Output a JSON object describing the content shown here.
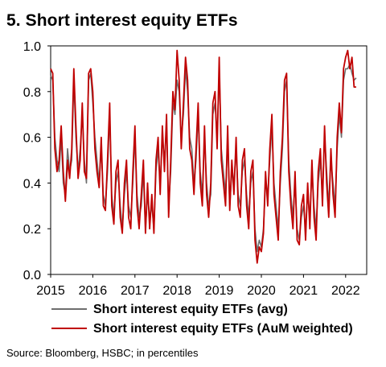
{
  "title": "5. Short interest equity ETFs",
  "source": "Source: Bloomberg, HSBC; in percentiles",
  "chart_data": {
    "type": "line",
    "ylim": [
      0.0,
      1.0
    ],
    "y_ticks": [
      "0.0",
      "0.2",
      "0.4",
      "0.6",
      "0.8",
      "1.0"
    ],
    "x_ticks": [
      "2015",
      "2016",
      "2017",
      "2018",
      "2019",
      "2020",
      "2021",
      "2022"
    ],
    "xlim": [
      2015.0,
      2022.5
    ],
    "legend_position": "bottom",
    "grid": false,
    "series": [
      {
        "name": "Short interest equity ETFs (avg)",
        "color": "#6e6e6e",
        "x": [
          2015.0,
          2015.05,
          2015.1,
          2015.15,
          2015.2,
          2015.25,
          2015.3,
          2015.35,
          2015.4,
          2015.45,
          2015.5,
          2015.55,
          2015.6,
          2015.65,
          2015.7,
          2015.75,
          2015.8,
          2015.85,
          2015.9,
          2015.95,
          2016.0,
          2016.05,
          2016.1,
          2016.15,
          2016.2,
          2016.25,
          2016.3,
          2016.35,
          2016.4,
          2016.45,
          2016.5,
          2016.55,
          2016.6,
          2016.65,
          2016.7,
          2016.75,
          2016.8,
          2016.85,
          2016.9,
          2016.95,
          2017.0,
          2017.05,
          2017.1,
          2017.15,
          2017.2,
          2017.25,
          2017.3,
          2017.35,
          2017.4,
          2017.45,
          2017.5,
          2017.55,
          2017.6,
          2017.65,
          2017.7,
          2017.75,
          2017.8,
          2017.85,
          2017.9,
          2017.95,
          2018.0,
          2018.05,
          2018.1,
          2018.15,
          2018.2,
          2018.25,
          2018.3,
          2018.35,
          2018.4,
          2018.45,
          2018.5,
          2018.55,
          2018.6,
          2018.65,
          2018.7,
          2018.75,
          2018.8,
          2018.85,
          2018.9,
          2018.95,
          2019.0,
          2019.05,
          2019.1,
          2019.15,
          2019.2,
          2019.25,
          2019.3,
          2019.35,
          2019.4,
          2019.45,
          2019.5,
          2019.55,
          2019.6,
          2019.65,
          2019.7,
          2019.75,
          2019.8,
          2019.85,
          2019.9,
          2019.95,
          2020.0,
          2020.05,
          2020.1,
          2020.15,
          2020.2,
          2020.25,
          2020.3,
          2020.35,
          2020.4,
          2020.45,
          2020.5,
          2020.55,
          2020.6,
          2020.65,
          2020.7,
          2020.75,
          2020.8,
          2020.85,
          2020.9,
          2020.95,
          2021.0,
          2021.05,
          2021.1,
          2021.15,
          2021.2,
          2021.25,
          2021.3,
          2021.35,
          2021.4,
          2021.45,
          2021.5,
          2021.55,
          2021.6,
          2021.65,
          2021.7,
          2021.75,
          2021.8,
          2021.85,
          2021.9,
          2021.95,
          2022.0,
          2022.05,
          2022.1,
          2022.15,
          2022.2,
          2022.25
        ],
        "values": [
          0.87,
          0.85,
          0.6,
          0.5,
          0.45,
          0.6,
          0.4,
          0.35,
          0.55,
          0.45,
          0.5,
          0.85,
          0.6,
          0.45,
          0.55,
          0.7,
          0.5,
          0.4,
          0.85,
          0.88,
          0.75,
          0.6,
          0.5,
          0.4,
          0.55,
          0.35,
          0.3,
          0.45,
          0.7,
          0.35,
          0.25,
          0.4,
          0.45,
          0.3,
          0.2,
          0.35,
          0.45,
          0.3,
          0.25,
          0.4,
          0.6,
          0.35,
          0.25,
          0.3,
          0.45,
          0.2,
          0.35,
          0.25,
          0.3,
          0.2,
          0.45,
          0.55,
          0.4,
          0.6,
          0.5,
          0.65,
          0.3,
          0.45,
          0.75,
          0.7,
          0.85,
          0.8,
          0.6,
          0.7,
          0.9,
          0.8,
          0.6,
          0.55,
          0.4,
          0.5,
          0.7,
          0.45,
          0.35,
          0.6,
          0.4,
          0.3,
          0.35,
          0.7,
          0.75,
          0.6,
          0.9,
          0.55,
          0.45,
          0.35,
          0.6,
          0.3,
          0.45,
          0.4,
          0.55,
          0.35,
          0.3,
          0.45,
          0.5,
          0.35,
          0.25,
          0.4,
          0.45,
          0.2,
          0.1,
          0.15,
          0.12,
          0.2,
          0.4,
          0.35,
          0.5,
          0.65,
          0.4,
          0.3,
          0.2,
          0.4,
          0.55,
          0.8,
          0.85,
          0.5,
          0.35,
          0.25,
          0.4,
          0.2,
          0.15,
          0.25,
          0.3,
          0.2,
          0.35,
          0.25,
          0.45,
          0.3,
          0.2,
          0.4,
          0.5,
          0.35,
          0.6,
          0.45,
          0.3,
          0.5,
          0.4,
          0.3,
          0.55,
          0.7,
          0.6,
          0.85,
          0.9,
          0.9,
          0.92,
          0.88,
          0.85,
          0.86
        ],
        "marks": "line"
      },
      {
        "name": "Short interest equity ETFs (AuM weighted)",
        "color": "#c00000",
        "x": [
          2015.0,
          2015.05,
          2015.1,
          2015.15,
          2015.2,
          2015.25,
          2015.3,
          2015.35,
          2015.4,
          2015.45,
          2015.5,
          2015.55,
          2015.6,
          2015.65,
          2015.7,
          2015.75,
          2015.8,
          2015.85,
          2015.9,
          2015.95,
          2016.0,
          2016.05,
          2016.1,
          2016.15,
          2016.2,
          2016.25,
          2016.3,
          2016.35,
          2016.4,
          2016.45,
          2016.5,
          2016.55,
          2016.6,
          2016.65,
          2016.7,
          2016.75,
          2016.8,
          2016.85,
          2016.9,
          2016.95,
          2017.0,
          2017.05,
          2017.1,
          2017.15,
          2017.2,
          2017.25,
          2017.3,
          2017.35,
          2017.4,
          2017.45,
          2017.5,
          2017.55,
          2017.6,
          2017.65,
          2017.7,
          2017.75,
          2017.8,
          2017.85,
          2017.9,
          2017.95,
          2018.0,
          2018.05,
          2018.1,
          2018.15,
          2018.2,
          2018.25,
          2018.3,
          2018.35,
          2018.4,
          2018.45,
          2018.5,
          2018.55,
          2018.6,
          2018.65,
          2018.7,
          2018.75,
          2018.8,
          2018.85,
          2018.9,
          2018.95,
          2019.0,
          2019.05,
          2019.1,
          2019.15,
          2019.2,
          2019.25,
          2019.3,
          2019.35,
          2019.4,
          2019.45,
          2019.5,
          2019.55,
          2019.6,
          2019.65,
          2019.7,
          2019.75,
          2019.8,
          2019.85,
          2019.9,
          2019.95,
          2020.0,
          2020.05,
          2020.1,
          2020.15,
          2020.2,
          2020.25,
          2020.3,
          2020.35,
          2020.4,
          2020.45,
          2020.5,
          2020.55,
          2020.6,
          2020.65,
          2020.7,
          2020.75,
          2020.8,
          2020.85,
          2020.9,
          2020.95,
          2021.0,
          2021.05,
          2021.1,
          2021.15,
          2021.2,
          2021.25,
          2021.3,
          2021.35,
          2021.4,
          2021.45,
          2021.5,
          2021.55,
          2021.6,
          2021.65,
          2021.7,
          2021.75,
          2021.8,
          2021.85,
          2021.9,
          2021.95,
          2022.0,
          2022.05,
          2022.1,
          2022.15,
          2022.2,
          2022.25
        ],
        "values": [
          0.9,
          0.88,
          0.55,
          0.45,
          0.5,
          0.65,
          0.45,
          0.32,
          0.5,
          0.42,
          0.55,
          0.9,
          0.65,
          0.42,
          0.5,
          0.75,
          0.45,
          0.42,
          0.88,
          0.9,
          0.8,
          0.55,
          0.45,
          0.38,
          0.6,
          0.3,
          0.28,
          0.5,
          0.75,
          0.3,
          0.22,
          0.45,
          0.5,
          0.25,
          0.18,
          0.4,
          0.5,
          0.25,
          0.2,
          0.45,
          0.65,
          0.3,
          0.2,
          0.35,
          0.5,
          0.18,
          0.4,
          0.2,
          0.35,
          0.18,
          0.5,
          0.6,
          0.35,
          0.65,
          0.45,
          0.7,
          0.25,
          0.5,
          0.8,
          0.72,
          0.98,
          0.85,
          0.55,
          0.75,
          0.95,
          0.85,
          0.55,
          0.5,
          0.35,
          0.55,
          0.75,
          0.4,
          0.3,
          0.65,
          0.35,
          0.25,
          0.4,
          0.75,
          0.8,
          0.55,
          0.95,
          0.5,
          0.4,
          0.3,
          0.65,
          0.28,
          0.5,
          0.35,
          0.6,
          0.3,
          0.25,
          0.5,
          0.55,
          0.3,
          0.2,
          0.45,
          0.5,
          0.15,
          0.05,
          0.12,
          0.1,
          0.18,
          0.45,
          0.3,
          0.55,
          0.7,
          0.35,
          0.25,
          0.15,
          0.45,
          0.6,
          0.85,
          0.88,
          0.45,
          0.3,
          0.2,
          0.45,
          0.15,
          0.13,
          0.3,
          0.35,
          0.15,
          0.4,
          0.2,
          0.5,
          0.25,
          0.15,
          0.45,
          0.55,
          0.3,
          0.65,
          0.4,
          0.25,
          0.55,
          0.35,
          0.25,
          0.6,
          0.75,
          0.62,
          0.9,
          0.95,
          0.98,
          0.9,
          0.95,
          0.82,
          0.82
        ],
        "marks": "line"
      }
    ]
  }
}
